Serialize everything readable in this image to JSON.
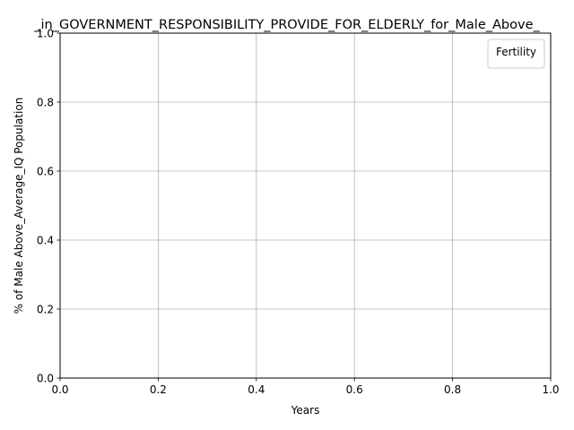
{
  "chart_data": {
    "type": "line",
    "title": "_in_GOVERNMENT_RESPONSIBILITY_PROVIDE_FOR_ELDERLY_for_Male_Above_",
    "xlabel": "Years",
    "ylabel": "% of Male Above_Average_IQ Population",
    "xlim": [
      0.0,
      1.0
    ],
    "ylim": [
      0.0,
      1.0
    ],
    "x_ticks": [
      "0.0",
      "0.2",
      "0.4",
      "0.6",
      "0.8",
      "1.0"
    ],
    "y_ticks": [
      "0.0",
      "0.2",
      "0.4",
      "0.6",
      "0.8",
      "1.0"
    ],
    "grid": true,
    "legend": {
      "title": "Fertility",
      "placement": "top-right",
      "entries": []
    },
    "series": []
  }
}
